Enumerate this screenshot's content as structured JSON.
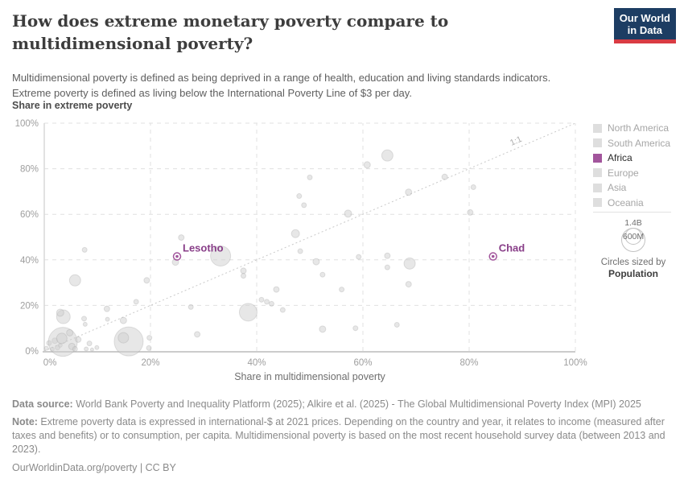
{
  "header": {
    "title": "How does extreme monetary poverty compare to multidimensional poverty?",
    "subtitle_line1": "Multidimensional poverty is defined as being deprived in a range of health, education and living standards indicators.",
    "subtitle_line2": "Extreme poverty is defined as living below the International Poverty Line of $3 per day.",
    "logo": {
      "line1": "Our World",
      "line2": "in Data",
      "bg_color": "#1d3d63",
      "accent_color": "#d93b43"
    }
  },
  "legend": {
    "items": [
      {
        "label": "North America",
        "color": "#dedede",
        "active": false
      },
      {
        "label": "South America",
        "color": "#dedede",
        "active": false
      },
      {
        "label": "Africa",
        "color": "#a2559c",
        "active": true
      },
      {
        "label": "Europe",
        "color": "#dedede",
        "active": false
      },
      {
        "label": "Asia",
        "color": "#dedede",
        "active": false
      },
      {
        "label": "Oceania",
        "color": "#dedede",
        "active": false
      }
    ],
    "size": {
      "big_label": "1.4B",
      "small_label": "600M",
      "caption": "Circles sized by",
      "caption_bold": "Population"
    }
  },
  "chart_data": {
    "type": "scatter",
    "xlabel": "Share in multidimensional poverty",
    "ylabel": "Share in extreme poverty",
    "xlim": [
      0,
      100
    ],
    "ylim": [
      0,
      100
    ],
    "xticks": [
      "0%",
      "20%",
      "40%",
      "60%",
      "80%",
      "100%"
    ],
    "yticks": [
      "0%",
      "20%",
      "40%",
      "60%",
      "80%",
      "100%"
    ],
    "grid": true,
    "diagonal_line": {
      "from": [
        0,
        0
      ],
      "to": [
        100,
        100
      ],
      "label": "1:1"
    },
    "point_color": "#cfcfcf",
    "highlight_color": "#a2559c",
    "highlighted": [
      {
        "name": "Lesotho",
        "x": 25,
        "y": 41.5
      },
      {
        "name": "Chad",
        "x": 84.5,
        "y": 41.5
      }
    ],
    "points_format": "[x_pct, y_pct, radius_px]",
    "points": [
      [
        0.4,
        1.2,
        2.5
      ],
      [
        0.9,
        3.5,
        3
      ],
      [
        1.5,
        0.8,
        2.5
      ],
      [
        2,
        4.5,
        3.5
      ],
      [
        2.5,
        1.5,
        3
      ],
      [
        3,
        2.5,
        2.5
      ],
      [
        3.5,
        4,
        18
      ],
      [
        3.3,
        5.5,
        6.5
      ],
      [
        4.8,
        8,
        4
      ],
      [
        5.2,
        2,
        4
      ],
      [
        5.8,
        0.9,
        3
      ],
      [
        6.4,
        5,
        3.5
      ],
      [
        7.9,
        0.9,
        2.5
      ],
      [
        8.5,
        3.3,
        3
      ],
      [
        9.9,
        1.5,
        2.5
      ],
      [
        9,
        0.6,
        2
      ],
      [
        3.6,
        15,
        8.5
      ],
      [
        3,
        16.8,
        4.5
      ],
      [
        7.5,
        14.2,
        3
      ],
      [
        7.7,
        11.7,
        2.5
      ],
      [
        11.9,
        13.9,
        2.5
      ],
      [
        11.8,
        18.5,
        3.5
      ],
      [
        14.9,
        13.4,
        4
      ],
      [
        15.9,
        4.2,
        18
      ],
      [
        14.9,
        5.8,
        6.5
      ],
      [
        17.3,
        21.6,
        3
      ],
      [
        19.3,
        31,
        3.5
      ],
      [
        19.8,
        5.8,
        3
      ],
      [
        19.7,
        1.3,
        3
      ],
      [
        5.8,
        31,
        7
      ],
      [
        7.6,
        44.4,
        3
      ],
      [
        24.7,
        39,
        4
      ],
      [
        25.8,
        49.8,
        3.5
      ],
      [
        27.6,
        19.3,
        3
      ],
      [
        28.8,
        7.3,
        3.5
      ],
      [
        33.2,
        41.7,
        12.5
      ],
      [
        37.5,
        35.2,
        3.5
      ],
      [
        37.5,
        33,
        3
      ],
      [
        38.4,
        17,
        11
      ],
      [
        40.9,
        22.5,
        3
      ],
      [
        41.9,
        21.6,
        3
      ],
      [
        42.8,
        20.7,
        3
      ],
      [
        43.7,
        27,
        3.5
      ],
      [
        44.9,
        18,
        3
      ],
      [
        47.3,
        51.5,
        5
      ],
      [
        48,
        68,
        3
      ],
      [
        48.9,
        64,
        3
      ],
      [
        50,
        76.2,
        3
      ],
      [
        48.2,
        43.8,
        3
      ],
      [
        51.2,
        39.2,
        4
      ],
      [
        52.4,
        33.5,
        3
      ],
      [
        52.4,
        9.6,
        4
      ],
      [
        56,
        27,
        3
      ],
      [
        57.2,
        60.3,
        4.5
      ],
      [
        58.6,
        10,
        3
      ],
      [
        59.2,
        41.3,
        3
      ],
      [
        60.8,
        81.7,
        4
      ],
      [
        64.6,
        85.8,
        7
      ],
      [
        64.6,
        41.8,
        3.5
      ],
      [
        64.6,
        36.7,
        3
      ],
      [
        66.4,
        11.5,
        3
      ],
      [
        68.6,
        69.7,
        4
      ],
      [
        68.8,
        38.4,
        7
      ],
      [
        68.6,
        29.3,
        3.5
      ],
      [
        75.4,
        76.4,
        3.5
      ],
      [
        80.8,
        71.9,
        3
      ],
      [
        80.2,
        60.8,
        3.5
      ]
    ]
  },
  "footer": {
    "source_prefix": "Data source:",
    "source_text": " World Bank Poverty and Inequality Platform (2025); Alkire et al. (2025) - The Global Multidimensional Poverty Index (MPI) 2025",
    "note_prefix": "Note:",
    "note_text": " Extreme poverty data is expressed in international-$ at 2021 prices. Depending on the country and year, it relates to income (measured after taxes and benefits) or to consumption, per capita. Multidimensional poverty is based on the most recent household survey data (between 2013 and 2023).",
    "license": "OurWorldinData.org/poverty | CC BY"
  }
}
